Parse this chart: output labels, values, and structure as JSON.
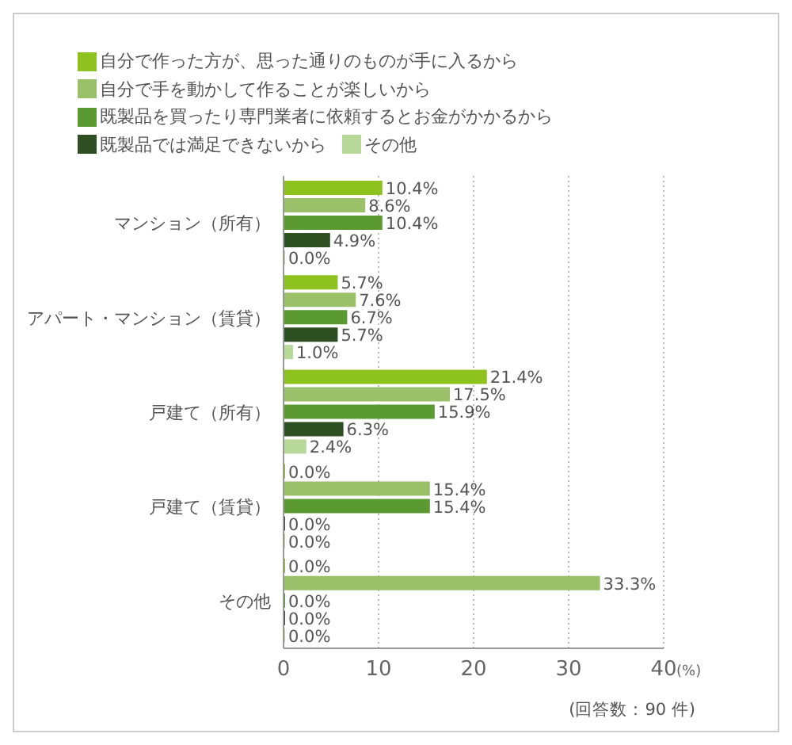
{
  "chart_data": {
    "type": "bar",
    "orientation": "horizontal",
    "categories": [
      "マンション（所有）",
      "アパート・マンション（賃貸）",
      "戸建て（所有）",
      "戸建て（賃貸）",
      "その他"
    ],
    "series": [
      {
        "name": "自分で作った方が、思った通りのものが手に入るから",
        "color": "#8dc21f",
        "values": [
          10.4,
          5.7,
          21.4,
          0.0,
          0.0
        ],
        "value_labels": [
          "10.4%",
          "5.7%",
          "21.4%",
          "0.0%",
          "0.0%"
        ]
      },
      {
        "name": "自分で手を動かして作ることが楽しいから",
        "color": "#9bc06a",
        "values": [
          8.6,
          7.6,
          17.5,
          15.4,
          33.3
        ],
        "value_labels": [
          "8.6%",
          "7.6%",
          "17.5%",
          "15.4%",
          "33.3%"
        ]
      },
      {
        "name": "既製品を買ったり専門業者に依頼するとお金がかかるから",
        "color": "#5a9a30",
        "values": [
          10.4,
          6.7,
          15.9,
          15.4,
          0.0
        ],
        "value_labels": [
          "10.4%",
          "6.7%",
          "15.9%",
          "15.4%",
          "0.0%"
        ]
      },
      {
        "name": "既製品では満足できないから",
        "color": "#2e4f22",
        "values": [
          4.9,
          5.7,
          6.3,
          0.0,
          0.0
        ],
        "value_labels": [
          "4.9%",
          "5.7%",
          "6.3%",
          "0.0%",
          "0.0%"
        ]
      },
      {
        "name": "その他",
        "color": "#b8d99a",
        "values": [
          0.0,
          1.0,
          2.4,
          0.0,
          0.0
        ],
        "value_labels": [
          "0.0%",
          "1.0%",
          "2.4%",
          "0.0%",
          "0.0%"
        ]
      }
    ],
    "xlim": [
      0,
      40
    ],
    "xticks": [
      0,
      10,
      20,
      30,
      40
    ],
    "xlabel": "(%)",
    "grid": "x",
    "legend": "top",
    "annotations": [
      "(回答数：90 件)"
    ]
  }
}
